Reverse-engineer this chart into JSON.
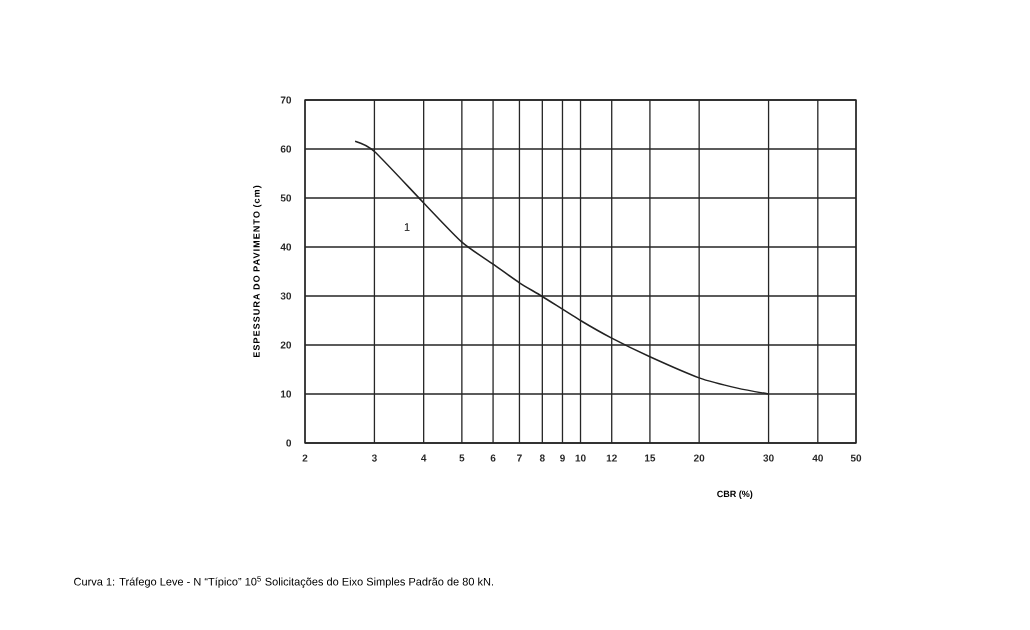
{
  "chart_data": {
    "type": "line",
    "xlabel": "CBR (%)",
    "ylabel": "ESPESSURA DO PAVIMENTO (cm)",
    "x": [
      2.68,
      3.0,
      4.0,
      5.0,
      6.0,
      7.0,
      8.0,
      10,
      12,
      15,
      20,
      25,
      30
    ],
    "series": [
      {
        "color": "#222222",
        "values": [
          61.6,
          59.5,
          49,
          41,
          36.5,
          32.7,
          29.9,
          25,
          21.4,
          17.6,
          13.3,
          11.2,
          10
        ]
      }
    ],
    "xlim": [
      2,
      50
    ],
    "ylim": [
      0,
      70
    ],
    "xticks": [
      2,
      3,
      4,
      5,
      6,
      7,
      8,
      9,
      10,
      12,
      15,
      20,
      30,
      40,
      50
    ],
    "yticks": [
      0,
      10,
      20,
      30,
      40,
      50,
      60,
      70
    ],
    "log": "x",
    "grid": true,
    "marker": "none",
    "line_style": "solid",
    "annotations": [
      "1",
      "Curva 1:  Tráfego Leve  - N “Típico” 10$^{5}$ Solicitações do Eixo Simples Padrão de 80 kN."
    ]
  }
}
